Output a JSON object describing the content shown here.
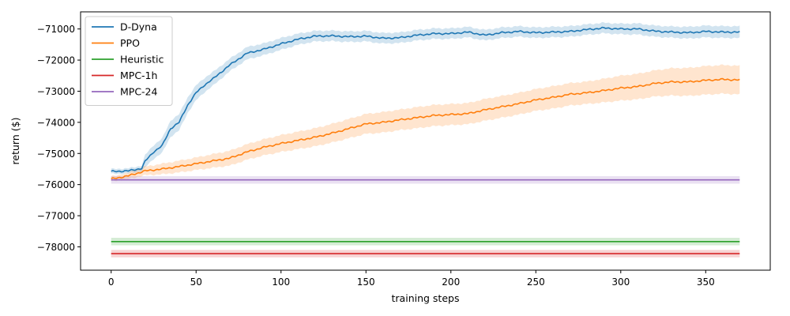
{
  "chart_data": {
    "type": "line",
    "xlabel": "training steps",
    "ylabel": "return  ($)",
    "xlim": [
      -18,
      388
    ],
    "ylim": [
      -78750,
      -70450
    ],
    "x_ticks": [
      0,
      50,
      100,
      150,
      200,
      250,
      300,
      350
    ],
    "x_tick_labels": [
      "0",
      "50",
      "100",
      "150",
      "200",
      "250",
      "300",
      "350"
    ],
    "y_ticks": [
      -78000,
      -77000,
      -76000,
      -75000,
      -74000,
      -73000,
      -72000,
      -71000
    ],
    "y_tick_labels": [
      "−78000",
      "−77000",
      "−76000",
      "−75000",
      "−74000",
      "−73000",
      "−72000",
      "−71000"
    ],
    "grid": false,
    "legend_position": "top-left",
    "series": [
      {
        "name": "D-Dyna",
        "color": "#1f77b4",
        "x": [
          0,
          10,
          18,
          20,
          25,
          30,
          35,
          40,
          45,
          50,
          55,
          60,
          70,
          80,
          90,
          100,
          110,
          120,
          130,
          140,
          150,
          160,
          170,
          180,
          190,
          200,
          210,
          220,
          230,
          240,
          250,
          260,
          270,
          280,
          290,
          300,
          310,
          320,
          330,
          340,
          350,
          360,
          370
        ],
        "mean": [
          -75580,
          -75560,
          -75480,
          -75250,
          -74950,
          -74750,
          -74200,
          -74000,
          -73450,
          -73050,
          -72800,
          -72600,
          -72150,
          -71780,
          -71650,
          -71480,
          -71330,
          -71230,
          -71220,
          -71250,
          -71230,
          -71300,
          -71280,
          -71200,
          -71150,
          -71150,
          -71100,
          -71200,
          -71120,
          -71080,
          -71120,
          -71100,
          -71080,
          -71020,
          -70970,
          -71000,
          -71000,
          -71070,
          -71100,
          -71120,
          -71080,
          -71100,
          -71100
        ],
        "spread": [
          80,
          80,
          90,
          200,
          220,
          230,
          260,
          260,
          250,
          240,
          230,
          220,
          200,
          200,
          190,
          190,
          180,
          170,
          170,
          170,
          170,
          170,
          170,
          170,
          170,
          170,
          170,
          170,
          170,
          170,
          170,
          170,
          170,
          170,
          170,
          170,
          180,
          180,
          180,
          190,
          190,
          190,
          190
        ]
      },
      {
        "name": "PPO",
        "color": "#ff7f0e",
        "x": [
          0,
          10,
          20,
          30,
          40,
          50,
          60,
          70,
          80,
          90,
          100,
          110,
          120,
          130,
          140,
          150,
          160,
          170,
          180,
          190,
          200,
          210,
          220,
          230,
          240,
          250,
          260,
          270,
          280,
          290,
          300,
          310,
          320,
          330,
          340,
          350,
          360,
          370
        ],
        "mean": [
          -75820,
          -75720,
          -75560,
          -75500,
          -75420,
          -75330,
          -75240,
          -75150,
          -74950,
          -74800,
          -74680,
          -74580,
          -74480,
          -74350,
          -74200,
          -74050,
          -74000,
          -73920,
          -73850,
          -73780,
          -73750,
          -73720,
          -73600,
          -73500,
          -73400,
          -73280,
          -73200,
          -73100,
          -73050,
          -72980,
          -72900,
          -72850,
          -72750,
          -72700,
          -72700,
          -72650,
          -72620,
          -72640
        ],
        "spread": [
          80,
          100,
          140,
          170,
          190,
          200,
          220,
          240,
          250,
          260,
          270,
          280,
          290,
          300,
          310,
          320,
          330,
          330,
          340,
          340,
          340,
          340,
          350,
          350,
          350,
          350,
          360,
          360,
          360,
          380,
          400,
          410,
          420,
          440,
          450,
          460,
          460,
          460
        ]
      },
      {
        "name": "Heuristic",
        "color": "#2ca02c",
        "x": [
          0,
          370
        ],
        "mean": [
          -77830,
          -77830
        ],
        "spread": [
          120,
          120
        ]
      },
      {
        "name": "MPC-1h",
        "color": "#d62728",
        "x": [
          0,
          370
        ],
        "mean": [
          -78220,
          -78220
        ],
        "spread": [
          120,
          120
        ]
      },
      {
        "name": "MPC-24",
        "color": "#9467bd",
        "x": [
          0,
          370
        ],
        "mean": [
          -75850,
          -75850
        ],
        "spread": [
          120,
          120
        ]
      }
    ]
  }
}
